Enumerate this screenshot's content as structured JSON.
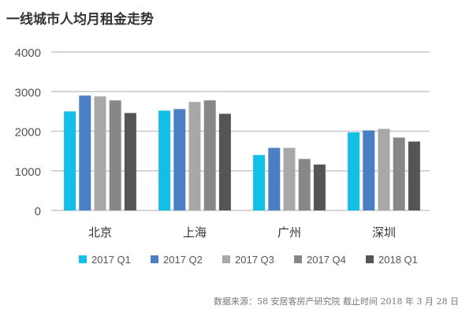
{
  "chart_data": {
    "type": "bar",
    "title": "一线城市人均月租金走势",
    "categories": [
      "北京",
      "上海",
      "广州",
      "深圳"
    ],
    "series": [
      {
        "name": "2017 Q1",
        "color": "#12bfe6",
        "values": [
          2500,
          2520,
          1400,
          1970
        ]
      },
      {
        "name": "2017 Q2",
        "color": "#4a7fc4",
        "values": [
          2900,
          2560,
          1580,
          2020
        ]
      },
      {
        "name": "2017 Q3",
        "color": "#a8a8a8",
        "values": [
          2880,
          2740,
          1580,
          2060
        ]
      },
      {
        "name": "2017 Q4",
        "color": "#878787",
        "values": [
          2780,
          2780,
          1300,
          1840
        ]
      },
      {
        "name": "2018 Q1",
        "color": "#555555",
        "values": [
          2460,
          2440,
          1160,
          1740
        ]
      }
    ],
    "yticks": [
      0,
      1000,
      2000,
      3000,
      4000
    ],
    "ylim": [
      0,
      4000
    ],
    "grid": true,
    "legend": "bottom"
  },
  "footer": "数据来源：58 安居客房产研究院   截止时间 2018 年 3 月 28 日"
}
